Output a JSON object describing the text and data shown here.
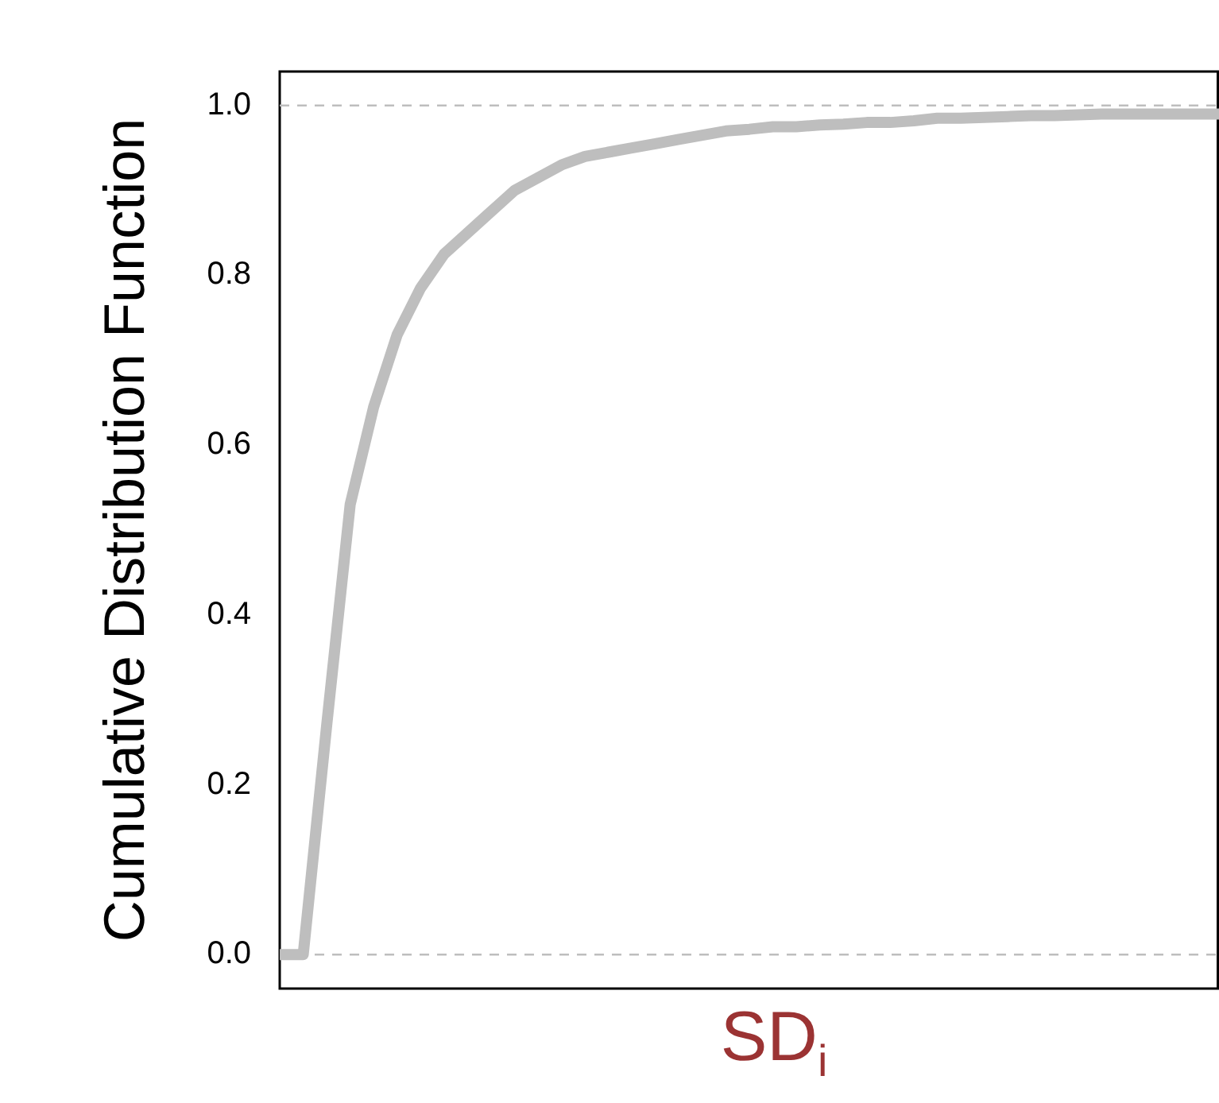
{
  "chart_data": {
    "type": "line",
    "xlabel": "SD$_{i}$",
    "ylabel": "Cumulative Distribution Function",
    "categories": [
      null,
      null,
      null,
      null,
      null,
      null,
      null,
      null,
      null,
      null,
      null,
      null,
      null,
      null,
      null,
      null,
      null,
      null,
      null,
      null,
      null,
      null,
      null,
      null,
      null,
      null,
      null,
      null,
      null,
      null,
      null,
      null,
      null,
      null,
      null,
      null,
      null,
      null,
      null,
      null,
      null
    ],
    "series": [
      {
        "color": "#bebebe",
        "values": [
          0,
          0,
          0.27,
          0.53,
          0.645,
          0.73,
          0.785,
          0.825,
          0.85,
          0.875,
          0.9,
          0.915,
          0.93,
          0.94,
          0.945,
          0.95,
          0.955,
          0.96,
          0.965,
          0.97,
          0.972,
          0.975,
          0.975,
          0.977,
          0.978,
          0.98,
          0.98,
          0.982,
          0.985,
          0.985,
          0.986,
          0.987,
          0.988,
          0.988,
          0.989,
          0.99,
          0.99,
          0.99,
          0.99,
          0.99,
          0.99
        ]
      }
    ],
    "ylim": [
      -0.04,
      1.04
    ],
    "yticks": [
      {
        "value": 0,
        "label": "0.0"
      },
      {
        "value": 0.2,
        "label": "0.2"
      },
      {
        "value": 0.4,
        "label": "0.4"
      },
      {
        "value": 0.6,
        "label": "0.6"
      },
      {
        "value": 0.8,
        "label": "0.8"
      },
      {
        "value": 1,
        "label": "1.0"
      }
    ],
    "ref_lines": [
      {
        "axis": "y",
        "value": 0,
        "color": "#bebebe",
        "line_style": "dashed"
      },
      {
        "axis": "y",
        "value": 1,
        "color": "#bebebe",
        "line_style": "dashed"
      }
    ],
    "grid": false,
    "legend": false,
    "tick_labels": "y",
    "marker": "none",
    "line_style": "solid"
  }
}
